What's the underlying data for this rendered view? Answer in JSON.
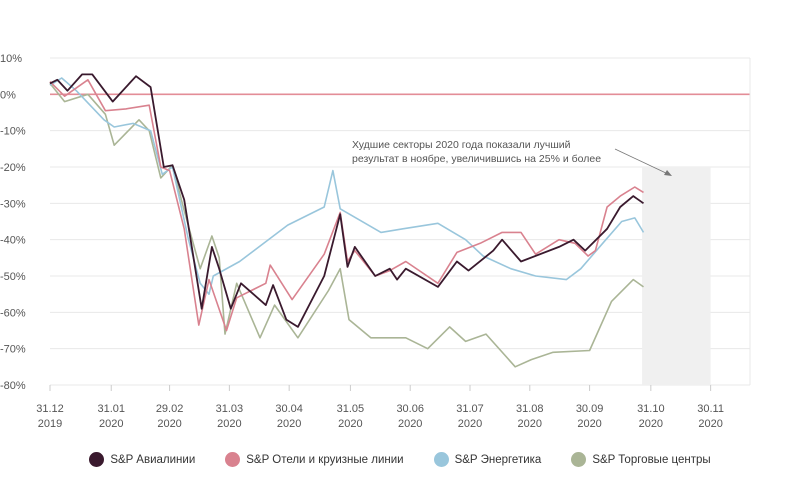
{
  "colors": {
    "airlines": "#3a1a2e",
    "hotels": "#d9828f",
    "energy": "#99c6dc",
    "malls": "#aab596",
    "zero_line": "#e38d97",
    "grid": "#e8e8e8",
    "highlight": "#f0f0f0"
  },
  "chart_data": {
    "type": "line",
    "ylim": [
      -80,
      10
    ],
    "xlim": [
      0,
      48
    ],
    "y_ticks": [
      10,
      0,
      -10,
      -20,
      -30,
      -40,
      -50,
      -60,
      -70,
      -80
    ],
    "y_tick_labels": [
      "10%",
      "0%",
      "-10%",
      "-20%",
      "-30%",
      "-40%",
      "-50%",
      "-60%",
      "-70%",
      "-80%"
    ],
    "x_ticks": [
      {
        "x": 0,
        "top": "31.12",
        "bottom": "2019"
      },
      {
        "x": 4.2,
        "top": "31.01",
        "bottom": "2020"
      },
      {
        "x": 8.2,
        "top": "29.02",
        "bottom": "2020"
      },
      {
        "x": 12.3,
        "top": "31.03",
        "bottom": "2020"
      },
      {
        "x": 16.4,
        "top": "30.04",
        "bottom": "2020"
      },
      {
        "x": 20.6,
        "top": "31.05",
        "bottom": "2020"
      },
      {
        "x": 24.7,
        "top": "30.06",
        "bottom": "2020"
      },
      {
        "x": 28.8,
        "top": "31.07",
        "bottom": "2020"
      },
      {
        "x": 32.9,
        "top": "31.08",
        "bottom": "2020"
      },
      {
        "x": 37.0,
        "top": "30.09",
        "bottom": "2020"
      },
      {
        "x": 41.2,
        "top": "31.10",
        "bottom": "2020"
      },
      {
        "x": 45.3,
        "top": "30.11",
        "bottom": "2020"
      }
    ],
    "highlight_range": [
      40.6,
      45.3
    ],
    "annotation": {
      "lines": [
        "Худшие секторы 2020 года показали лучший",
        "результат в ноябре, увеличившись на 25% и более"
      ]
    },
    "series": [
      {
        "name": "S&P Авиалинии",
        "key": "airlines",
        "points": [
          [
            0,
            3
          ],
          [
            0.5,
            4
          ],
          [
            1.2,
            1
          ],
          [
            2.2,
            5.5
          ],
          [
            2.9,
            5.5
          ],
          [
            4.3,
            -2
          ],
          [
            5.9,
            5
          ],
          [
            6.9,
            2
          ],
          [
            7.8,
            -20
          ],
          [
            8.4,
            -19.5
          ],
          [
            9.2,
            -29
          ],
          [
            10.4,
            -59
          ],
          [
            11.1,
            -42
          ],
          [
            11.6,
            -48
          ],
          [
            12.4,
            -59
          ],
          [
            13.1,
            -52
          ],
          [
            14.8,
            -58
          ],
          [
            15.3,
            -52.5
          ],
          [
            16.2,
            -62
          ],
          [
            17.0,
            -64
          ],
          [
            18.8,
            -50
          ],
          [
            19.9,
            -33
          ],
          [
            20.4,
            -47.5
          ],
          [
            20.9,
            -42
          ],
          [
            22.3,
            -50
          ],
          [
            23.3,
            -48
          ],
          [
            23.8,
            -51
          ],
          [
            24.4,
            -48
          ],
          [
            26.6,
            -53
          ],
          [
            27.9,
            -46
          ],
          [
            28.7,
            -48.5
          ],
          [
            30.4,
            -43
          ],
          [
            31.0,
            -40
          ],
          [
            32.3,
            -46
          ],
          [
            34.9,
            -42
          ],
          [
            35.9,
            -40
          ],
          [
            36.7,
            -43
          ],
          [
            38.2,
            -37
          ],
          [
            39.1,
            -31
          ],
          [
            40.0,
            -28
          ],
          [
            40.7,
            -30
          ]
        ]
      },
      {
        "name": "S&P Отели и круизные линии",
        "key": "hotels",
        "points": [
          [
            0,
            3.5
          ],
          [
            1.0,
            -0.5
          ],
          [
            2.6,
            4
          ],
          [
            3.8,
            -4.5
          ],
          [
            5.2,
            -4
          ],
          [
            6.8,
            -3
          ],
          [
            7.6,
            -20
          ],
          [
            8.2,
            -21
          ],
          [
            9.2,
            -37
          ],
          [
            10.2,
            -63.5
          ],
          [
            10.9,
            -51
          ],
          [
            12.1,
            -65
          ],
          [
            12.8,
            -56
          ],
          [
            14.8,
            -52
          ],
          [
            15.1,
            -47
          ],
          [
            16.6,
            -56.5
          ],
          [
            18.8,
            -44
          ],
          [
            19.9,
            -32.5
          ],
          [
            20.4,
            -46
          ],
          [
            20.9,
            -43
          ],
          [
            22.3,
            -50
          ],
          [
            23.3,
            -48.5
          ],
          [
            24.4,
            -46
          ],
          [
            26.6,
            -52
          ],
          [
            27.9,
            -43.5
          ],
          [
            29.5,
            -41
          ],
          [
            31.0,
            -38
          ],
          [
            32.3,
            -38
          ],
          [
            33.3,
            -44
          ],
          [
            34.9,
            -40
          ],
          [
            36.0,
            -41
          ],
          [
            36.9,
            -44.5
          ],
          [
            37.4,
            -43
          ],
          [
            38.2,
            -31
          ],
          [
            39.1,
            -28
          ],
          [
            40.1,
            -25.5
          ],
          [
            40.7,
            -27
          ]
        ]
      },
      {
        "name": "S&P Энергетика",
        "key": "energy",
        "points": [
          [
            0,
            2.5
          ],
          [
            0.8,
            4.5
          ],
          [
            1.8,
            1
          ],
          [
            3.7,
            -7
          ],
          [
            4.4,
            -9
          ],
          [
            5.7,
            -8
          ],
          [
            6.9,
            -10
          ],
          [
            7.7,
            -22
          ],
          [
            8.4,
            -20
          ],
          [
            9.5,
            -40
          ],
          [
            10.3,
            -52
          ],
          [
            10.9,
            -55
          ],
          [
            11.2,
            -50
          ],
          [
            13.0,
            -46
          ],
          [
            16.3,
            -36
          ],
          [
            18.8,
            -31
          ],
          [
            19.4,
            -21
          ],
          [
            19.9,
            -31.5
          ],
          [
            22.7,
            -38
          ],
          [
            24.2,
            -37
          ],
          [
            26.6,
            -35.5
          ],
          [
            28.5,
            -40
          ],
          [
            29.7,
            -44.5
          ],
          [
            31.6,
            -48
          ],
          [
            33.3,
            -50
          ],
          [
            35.4,
            -51
          ],
          [
            36.4,
            -48
          ],
          [
            37.9,
            -41
          ],
          [
            39.2,
            -35
          ],
          [
            40.1,
            -34
          ],
          [
            40.7,
            -38
          ]
        ]
      },
      {
        "name": "S&P Торговые центры",
        "key": "malls",
        "points": [
          [
            0,
            3
          ],
          [
            1.0,
            -2
          ],
          [
            2.6,
            0
          ],
          [
            3.8,
            -5.5
          ],
          [
            4.4,
            -14
          ],
          [
            6.1,
            -7
          ],
          [
            6.8,
            -10
          ],
          [
            7.6,
            -23
          ],
          [
            8.4,
            -19.5
          ],
          [
            9.2,
            -32
          ],
          [
            10.3,
            -48
          ],
          [
            11.1,
            -39
          ],
          [
            11.6,
            -45
          ],
          [
            12.0,
            -66
          ],
          [
            12.8,
            -52
          ],
          [
            14.4,
            -67
          ],
          [
            15.4,
            -58
          ],
          [
            17.0,
            -67
          ],
          [
            19.1,
            -54
          ],
          [
            19.9,
            -48
          ],
          [
            20.5,
            -62
          ],
          [
            22.0,
            -67
          ],
          [
            24.4,
            -67
          ],
          [
            25.9,
            -70
          ],
          [
            27.4,
            -64
          ],
          [
            28.5,
            -68
          ],
          [
            29.9,
            -66
          ],
          [
            31.9,
            -75
          ],
          [
            33.0,
            -73
          ],
          [
            34.5,
            -71
          ],
          [
            37.0,
            -70.5
          ],
          [
            38.5,
            -57
          ],
          [
            40.0,
            -51
          ],
          [
            40.7,
            -53
          ]
        ]
      }
    ]
  }
}
